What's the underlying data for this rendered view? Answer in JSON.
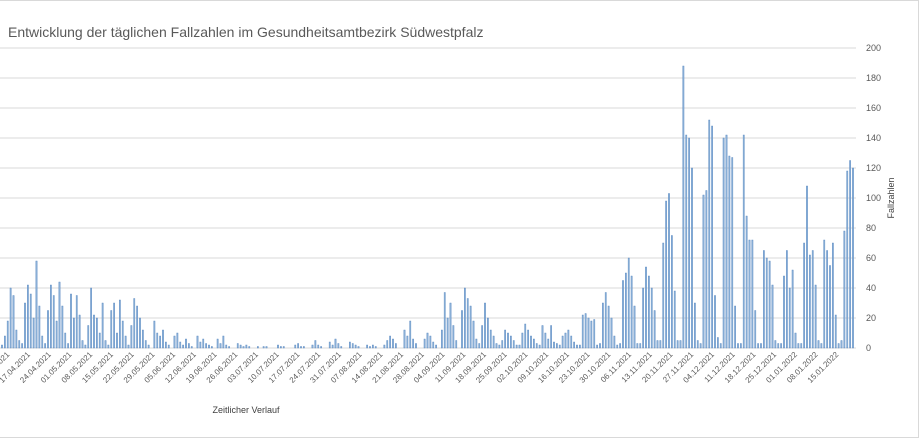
{
  "chart_data": {
    "type": "bar",
    "title": "Entwicklung der täglichen Fallzahlen im Gesundheitsamtbezirk Südwestpfalz",
    "xlabel": "Zeitlicher Verlauf",
    "ylabel": "Fallzahlen",
    "ylim": [
      0,
      200
    ],
    "yticks": [
      0,
      20,
      40,
      60,
      80,
      100,
      120,
      140,
      160,
      180,
      200
    ],
    "y_axis_side": "right",
    "grid": true,
    "bar_color": "#8fb4d9",
    "bar_edge_color": "#4f81bd",
    "grid_color": "#d9d9d9",
    "xtick_labels": [
      "10.04.2021",
      "17.04.2021",
      "24.04.2021",
      "01.05.2021",
      "08.05.2021",
      "15.05.2021",
      "22.05.2021",
      "29.05.2021",
      "05.06.2021",
      "12.06.2021",
      "19.06.2021",
      "26.06.2021",
      "03.07.2021",
      "10.07.2021",
      "17.07.2021",
      "24.07.2021",
      "31.07.2021",
      "07.08.2021",
      "14.08.2021",
      "21.08.2021",
      "28.08.2021",
      "04.09.2021",
      "11.09.2021",
      "18.09.2021",
      "25.09.2021",
      "02.10.2021",
      "09.10.2021",
      "16.10.2021",
      "23.10.2021",
      "30.10.2021",
      "06.11.2021",
      "13.11.2021",
      "20.11.2021",
      "27.11.2021",
      "04.12.2021",
      "11.12.2021",
      "18.12.2021",
      "25.12.2021",
      "01.01.2022",
      "08.01.2022",
      "15.01.2022"
    ],
    "values": [
      2,
      8,
      18,
      40,
      35,
      12,
      5,
      3,
      30,
      42,
      36,
      20,
      58,
      28,
      8,
      3,
      25,
      42,
      35,
      18,
      44,
      28,
      10,
      3,
      36,
      20,
      35,
      22,
      5,
      2,
      15,
      40,
      22,
      20,
      10,
      30,
      5,
      2,
      25,
      30,
      10,
      32,
      18,
      8,
      2,
      15,
      33,
      28,
      20,
      12,
      5,
      2,
      0,
      18,
      10,
      8,
      12,
      4,
      2,
      0,
      8,
      10,
      4,
      2,
      6,
      3,
      1,
      0,
      8,
      4,
      6,
      3,
      2,
      1,
      0,
      6,
      3,
      8,
      2,
      1,
      0,
      0,
      3,
      2,
      1,
      2,
      1,
      0,
      0,
      1,
      0,
      1,
      1,
      0,
      0,
      0,
      2,
      1,
      1,
      0,
      0,
      0,
      2,
      3,
      1,
      1,
      0,
      0,
      2,
      5,
      2,
      1,
      0,
      0,
      4,
      2,
      6,
      3,
      1,
      0,
      0,
      4,
      3,
      2,
      1,
      0,
      0,
      2,
      1,
      2,
      1,
      0,
      0,
      2,
      5,
      8,
      6,
      3,
      0,
      0,
      12,
      8,
      18,
      6,
      3,
      0,
      0,
      6,
      10,
      8,
      4,
      2,
      0,
      12,
      37,
      20,
      30,
      15,
      5,
      0,
      25,
      40,
      33,
      28,
      18,
      6,
      3,
      15,
      30,
      20,
      12,
      8,
      3,
      2,
      5,
      12,
      10,
      8,
      5,
      2,
      2,
      10,
      16,
      12,
      8,
      6,
      3,
      2,
      15,
      10,
      6,
      15,
      4,
      3,
      2,
      8,
      10,
      12,
      8,
      4,
      2,
      2,
      22,
      23,
      20,
      18,
      19,
      2,
      3,
      30,
      37,
      28,
      20,
      8,
      2,
      3,
      45,
      50,
      60,
      48,
      28,
      3,
      3,
      40,
      54,
      48,
      40,
      25,
      5,
      5,
      70,
      98,
      103,
      75,
      38,
      5,
      5,
      188,
      142,
      140,
      120,
      30,
      5,
      3,
      102,
      105,
      152,
      148,
      35,
      7,
      3,
      140,
      142,
      128,
      127,
      28,
      3,
      3,
      142,
      88,
      72,
      72,
      25,
      3,
      3,
      65,
      60,
      58,
      42,
      5,
      3,
      3,
      48,
      65,
      40,
      52,
      10,
      3,
      3,
      70,
      108,
      62,
      65,
      42,
      5,
      3,
      72,
      65,
      55,
      70,
      22,
      3,
      5,
      78,
      118,
      125,
      120
    ]
  }
}
